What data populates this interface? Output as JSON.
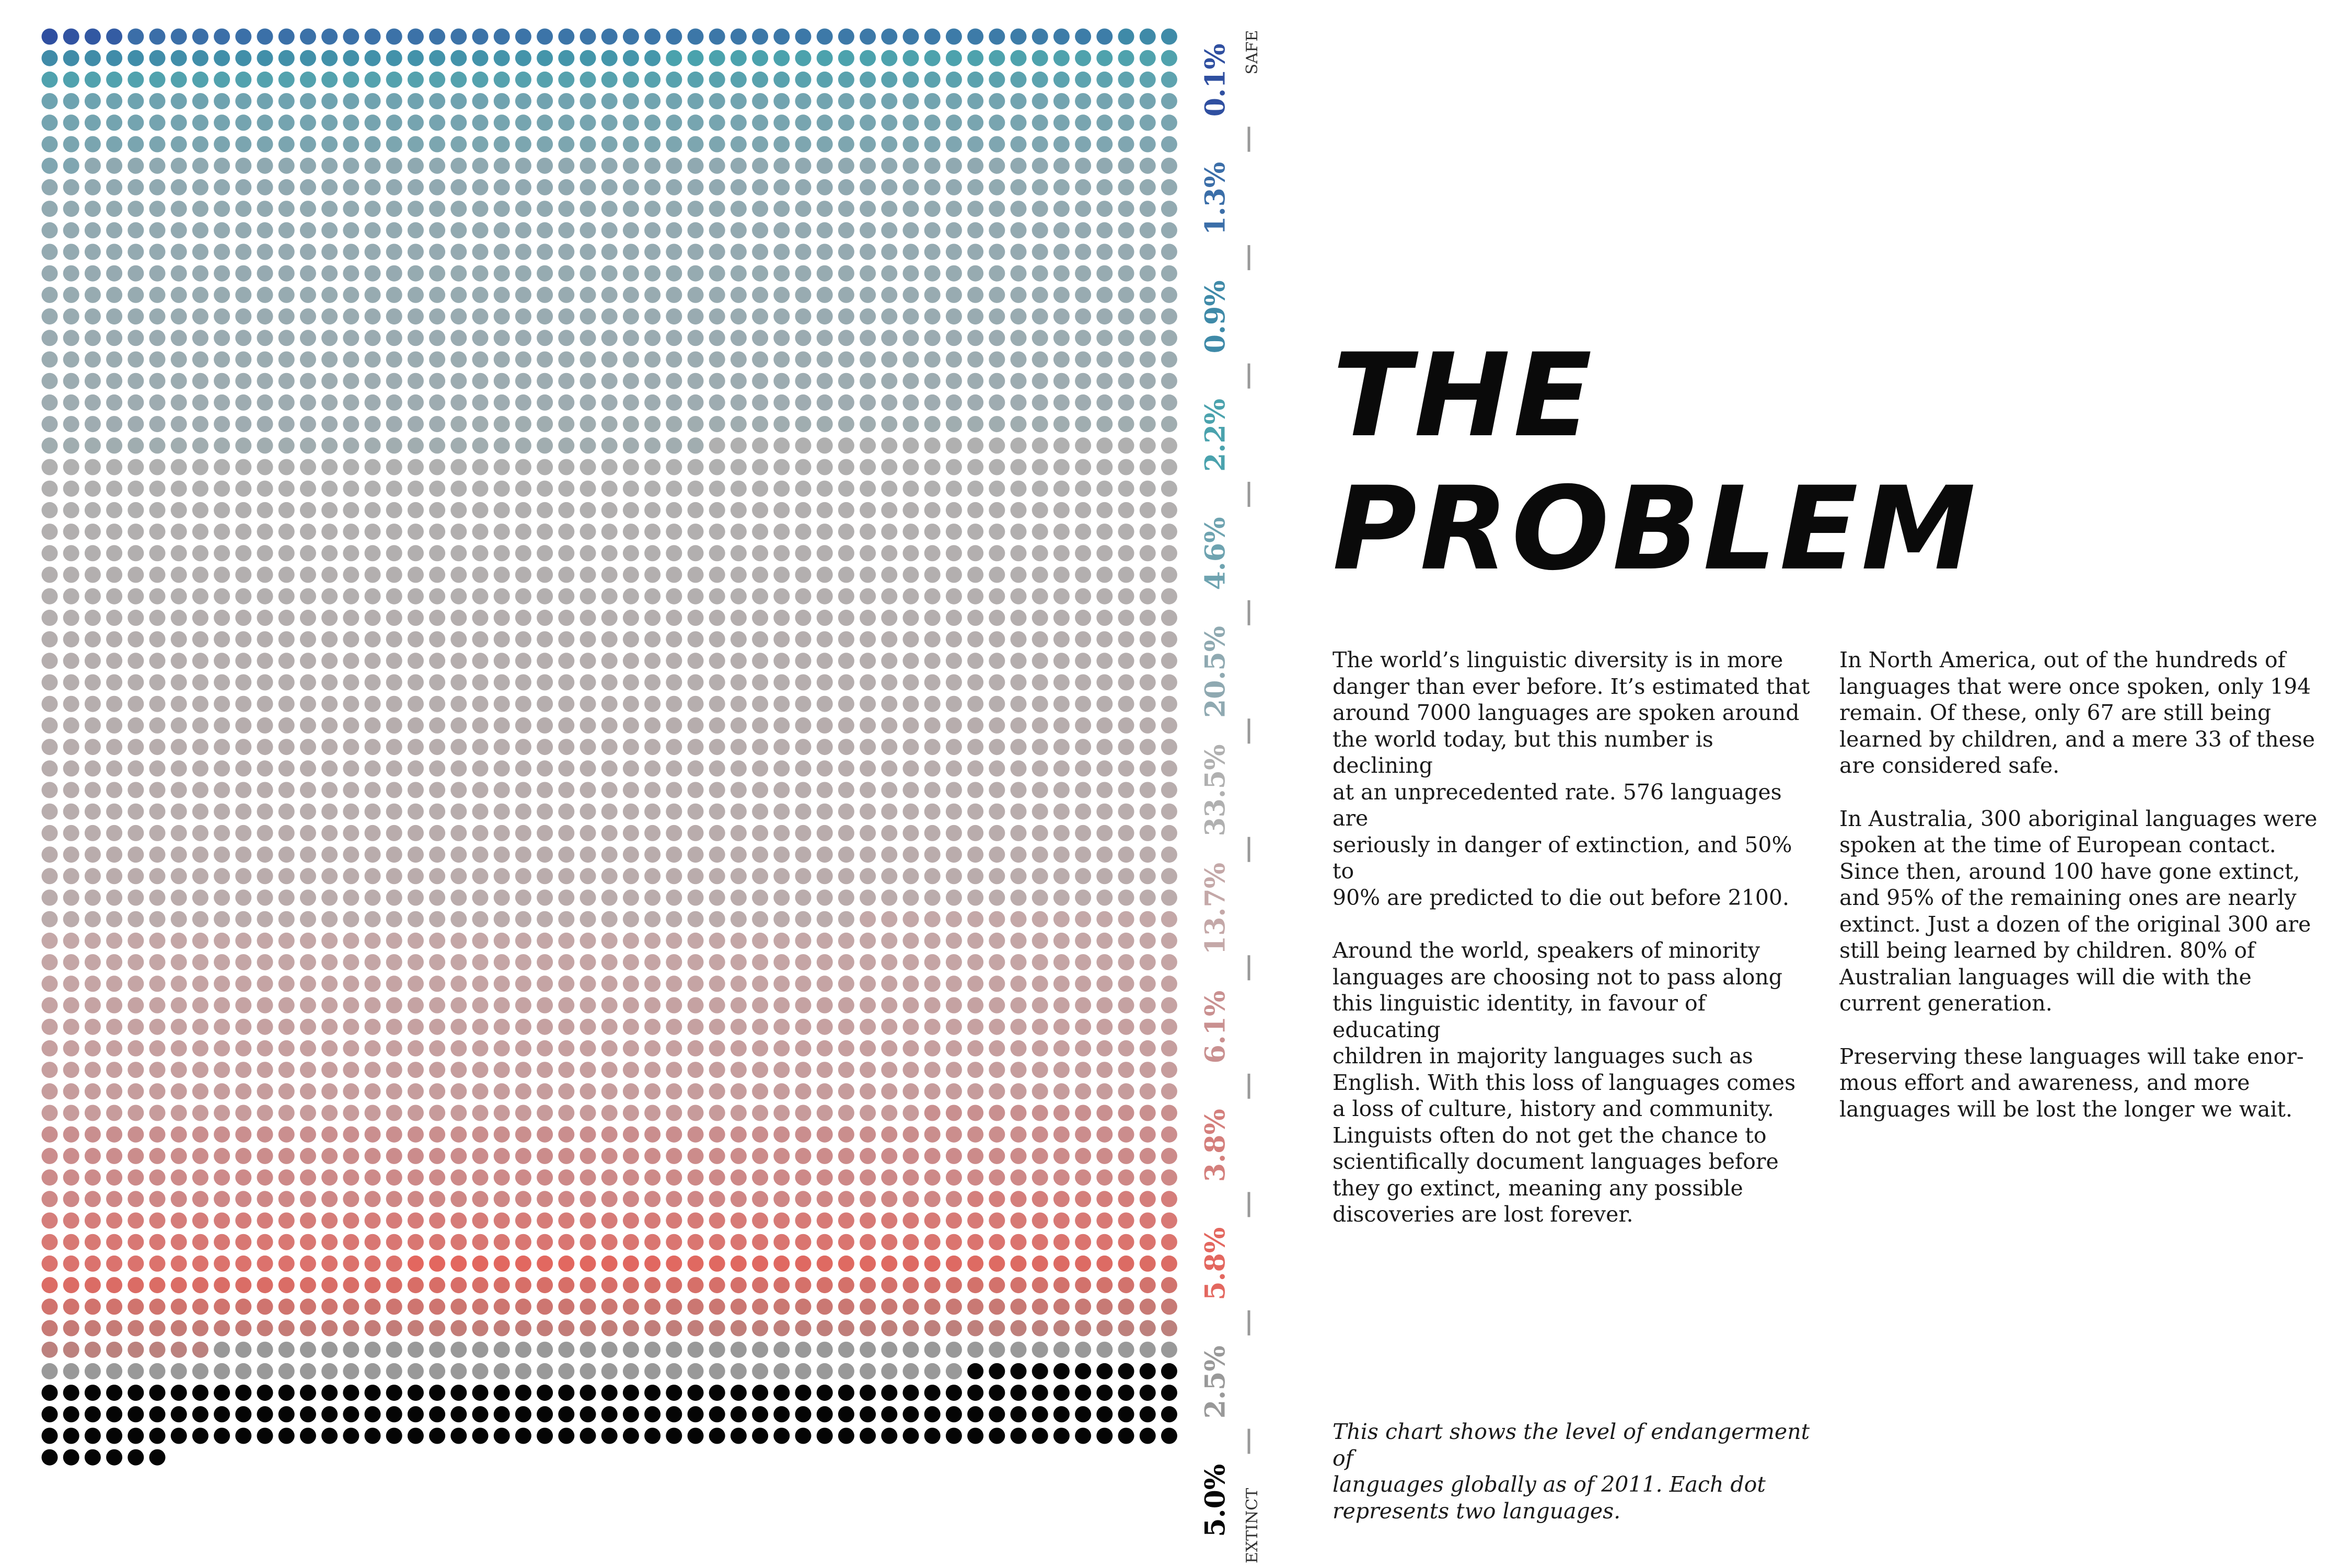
{
  "chart_data": {
    "type": "dot-matrix",
    "unit": "Each dot represents two languages",
    "direction": "top = SAFE, bottom = EXTINCT",
    "scale_labels": {
      "top": "SAFE",
      "bottom": "EXTINCT"
    },
    "categories": [
      {
        "percent_label": "0.1%",
        "value": 0.1,
        "color": "#2f4fa0"
      },
      {
        "percent_label": "1.3%",
        "value": 1.3,
        "color": "#3b6ea8"
      },
      {
        "percent_label": "0.9%",
        "value": 0.9,
        "color": "#3f8aa8"
      },
      {
        "percent_label": "2.2%",
        "value": 2.2,
        "color": "#4aa2ad"
      },
      {
        "percent_label": "4.6%",
        "value": 4.6,
        "color": "#6ea3b0"
      },
      {
        "percent_label": "20.5%",
        "value": 20.5,
        "color": "#8fa9b1"
      },
      {
        "percent_label": "33.5%",
        "value": 33.5,
        "color": "#b0b0b0"
      },
      {
        "percent_label": "13.7%",
        "value": 13.7,
        "color": "#c4a8a8"
      },
      {
        "percent_label": "6.1%",
        "value": 6.1,
        "color": "#c99090"
      },
      {
        "percent_label": "3.8%",
        "value": 3.8,
        "color": "#d47f7c"
      },
      {
        "percent_label": "5.8%",
        "value": 5.8,
        "color": "#e3675f"
      },
      {
        "percent_label": "2.5%",
        "value": 2.5,
        "color": "#999999"
      },
      {
        "percent_label": "5.0%",
        "value": 5.0,
        "color": "#050505"
      }
    ]
  },
  "heading": {
    "line1": "THE",
    "line2": "PROBLEM"
  },
  "body": {
    "left_p1": "The world’s linguistic diversity is in more\ndanger than ever before. It’s estimated that\naround 7000 languages are spoken around\nthe world today, but this number is declining\nat an unprecedented rate. 576 languages are\nseriously in danger of extinction, and 50% to\n90% are predicted to die out before 2100.",
    "left_p2": "Around the world, speakers of minority\nlanguages are choosing not to pass along\nthis linguistic identity, in favour of educating\nchildren in majority languages such as\nEnglish. With this loss of languages comes\na loss of culture, history and community.\nLinguists often do not get the chance to\nscientifically document languages before\nthey go extinct, meaning any possible\ndiscoveries are lost forever.",
    "right_p1": "In North America, out of the hundreds of\nlanguages that were once spoken, only 194\nremain. Of these, only 67 are still being\nlearned by children, and a mere 33 of these\nare considered safe.",
    "right_p2": "In Australia, 300 aboriginal languages were\nspoken at the time of European contact.\nSince then, around 100 have gone extinct,\nand 95% of the remaining ones are nearly\nextinct. Just a dozen of the original 300 are\nstill being learned by children. 80% of\nAustralian languages will die with the\ncurrent generation.",
    "right_p3": "Preserving these languages will take enor-\nmous effort and awareness, and more\nlanguages will be lost the longer we wait."
  },
  "caption": "This chart shows the level of endangerment of\nlanguages globally as of 2011. Each dot\nrepresents two languages."
}
